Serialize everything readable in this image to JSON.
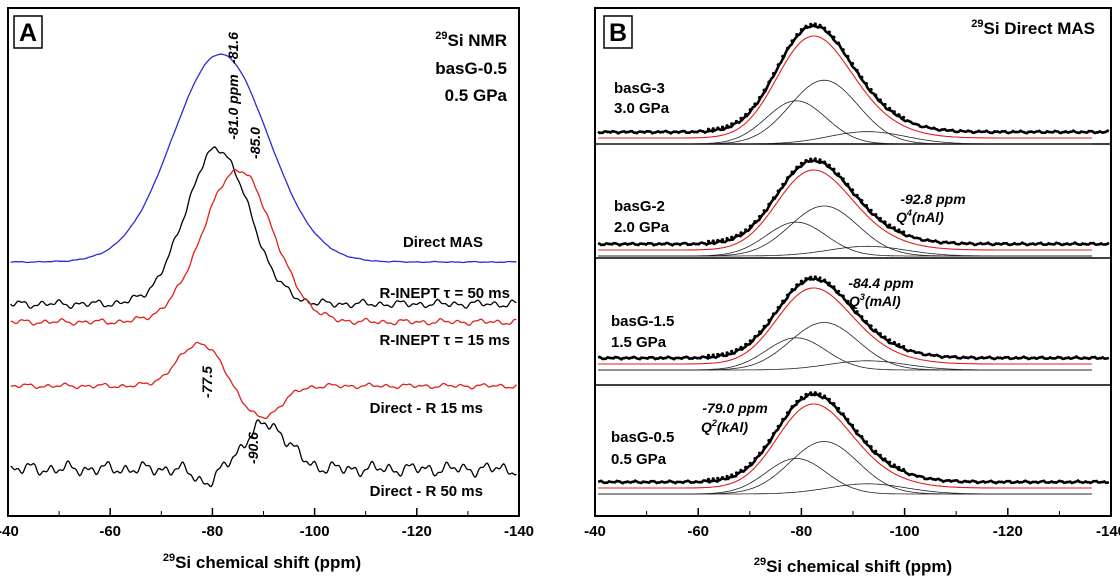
{
  "chart_data": [
    {
      "panel_label": "A",
      "type": "line",
      "title_lines": [
        "29Si NMR",
        "basG-0.5",
        "0.5 GPa"
      ],
      "xlabel": "29Si chemical shift (ppm)",
      "xlim": [
        -40,
        -140
      ],
      "x_ticks": [
        -40,
        -60,
        -80,
        -100,
        -120,
        -140
      ],
      "x_tick_labels": [
        "-40",
        "-60",
        "-80",
        "-100",
        "-120",
        "-140"
      ],
      "series": [
        {
          "name": "Direct MAS",
          "color": "#2b2bd6"
        },
        {
          "name": "R-INEPT τ = 50 ms",
          "color": "#000000"
        },
        {
          "name": "R-INEPT τ = 15 ms",
          "color": "#e0201a"
        },
        {
          "name": "Direct - R 15 ms",
          "color": "#e0201a"
        },
        {
          "name": "Direct - R 50 ms",
          "color": "#000000"
        }
      ],
      "peak_annotations": [
        "-81.6",
        "-81.0 ppm",
        "-85.0",
        "-77.5",
        "-90.6"
      ]
    },
    {
      "panel_label": "B",
      "type": "line",
      "title": "29Si Direct MAS",
      "xlabel": "29Si chemical shift (ppm)",
      "xlim": [
        -40,
        -140
      ],
      "x_ticks": [
        -40,
        -60,
        -80,
        -100,
        -120,
        -140
      ],
      "x_tick_labels": [
        "-40",
        "-60",
        "-80",
        "-100",
        "-120",
        "-140"
      ],
      "samples": [
        {
          "name": "basG-3",
          "pressure": "3.0 GPa"
        },
        {
          "name": "basG-2",
          "pressure": "2.0 GPa"
        },
        {
          "name": "basG-1.5",
          "pressure": "1.5 GPa"
        },
        {
          "name": "basG-0.5",
          "pressure": "0.5 GPa"
        }
      ],
      "components": [
        {
          "shift": "-79.0 ppm",
          "species": "Q2(kAl)",
          "center": -79.0
        },
        {
          "shift": "-84.4 ppm",
          "species": "Q3(mAl)",
          "center": -84.4
        },
        {
          "shift": "-92.8 ppm",
          "species": "Q4(nAl)",
          "center": -92.8
        }
      ]
    }
  ]
}
